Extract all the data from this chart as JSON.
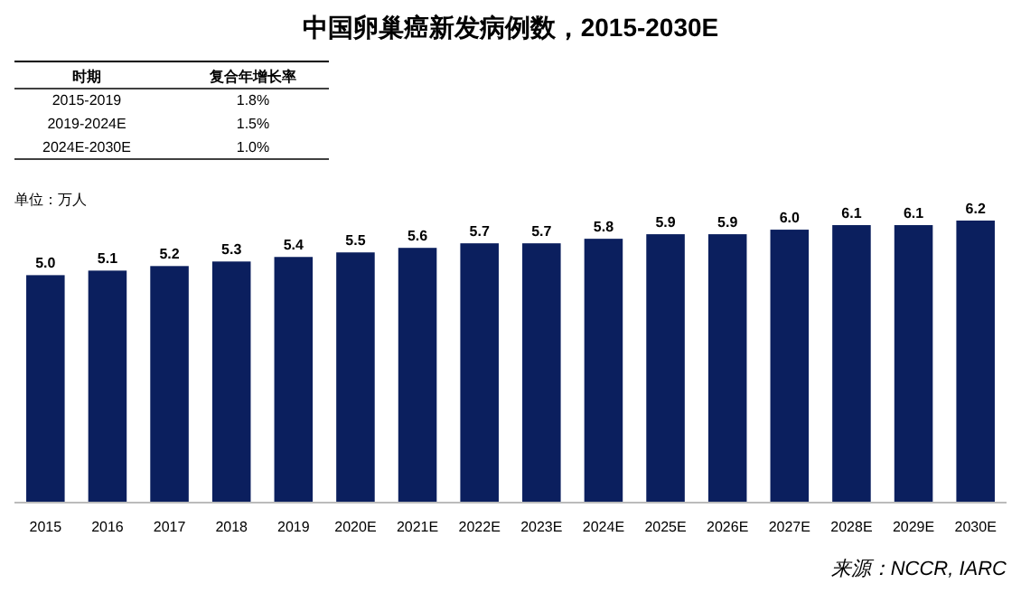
{
  "chart_data": {
    "type": "bar",
    "title": "中国卵巢癌新发病例数，2015-2030E",
    "ylabel": "单位：万人",
    "categories": [
      "2015",
      "2016",
      "2017",
      "2018",
      "2019",
      "2020E",
      "2021E",
      "2022E",
      "2023E",
      "2024E",
      "2025E",
      "2026E",
      "2027E",
      "2028E",
      "2029E",
      "2030E"
    ],
    "values": [
      5.0,
      5.1,
      5.2,
      5.3,
      5.4,
      5.5,
      5.6,
      5.7,
      5.7,
      5.8,
      5.9,
      5.9,
      6.0,
      6.1,
      6.1,
      6.2
    ],
    "value_labels": [
      "5.0",
      "5.1",
      "5.2",
      "5.3",
      "5.4",
      "5.5",
      "5.6",
      "5.7",
      "5.7",
      "5.8",
      "5.9",
      "5.9",
      "6.0",
      "6.1",
      "6.1",
      "6.2"
    ],
    "color": "#0b1f5e",
    "annotations": [
      "时期",
      "复合年增长率",
      "2015-2019",
      "1.8%",
      "2019-2024E",
      "1.5%",
      "2024E-2030E",
      "1.0%",
      "来源：NCCR, IARC"
    ]
  }
}
